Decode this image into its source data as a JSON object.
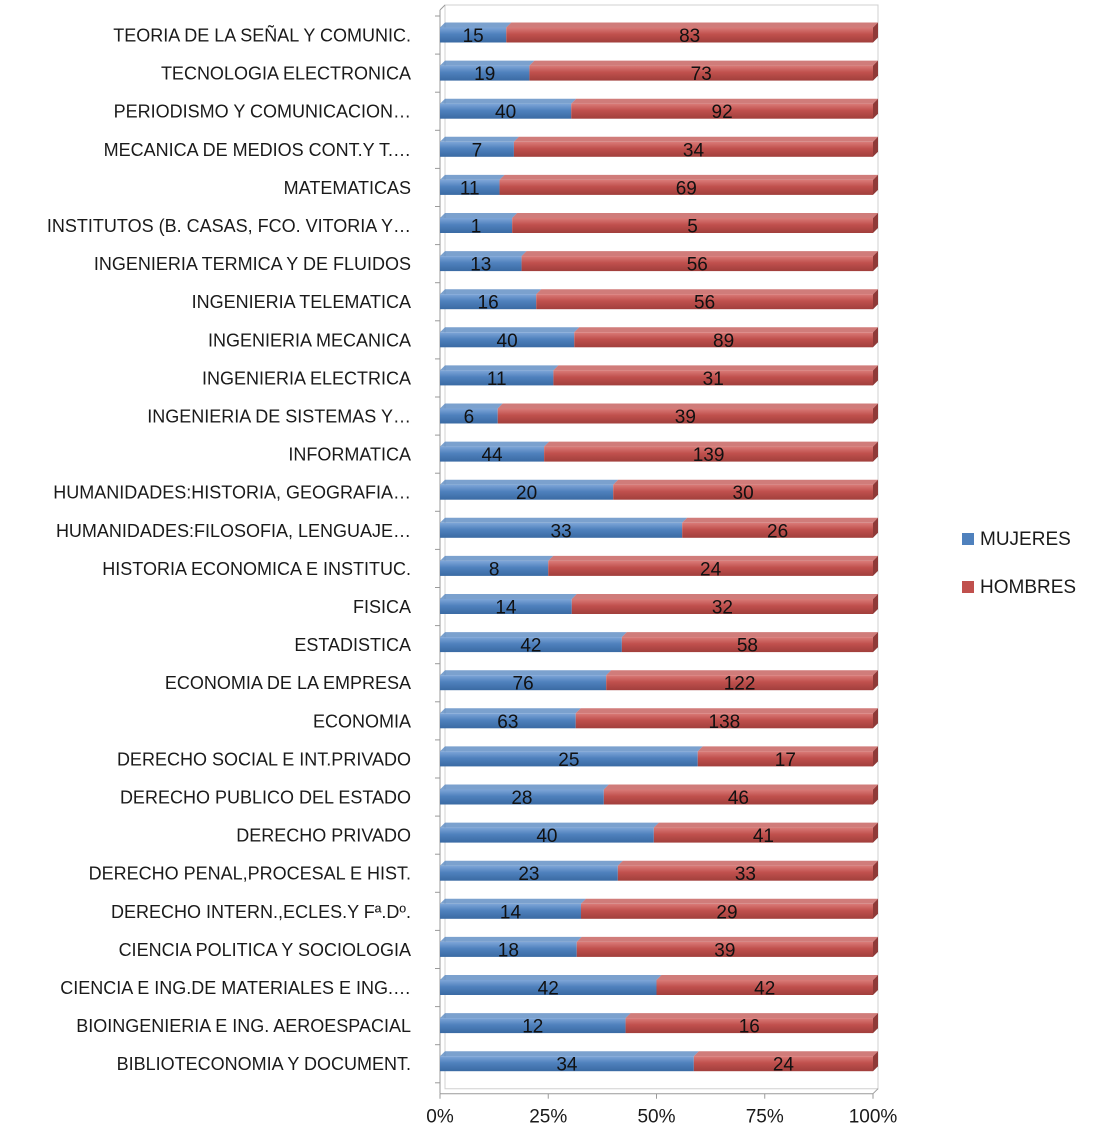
{
  "chart_data": {
    "type": "bar",
    "orientation": "horizontal",
    "stacked": "percent",
    "categories": [
      "TEORIA DE LA SEÑAL Y COMUNIC.",
      "TECNOLOGIA ELECTRONICA",
      "PERIODISMO Y COMUNICACION…",
      "MECANICA DE MEDIOS CONT.Y T.…",
      "MATEMATICAS",
      "INSTITUTOS (B.  CASAS, FCO. VITORIA Y…",
      "INGENIERIA TERMICA Y DE FLUIDOS",
      "INGENIERIA TELEMATICA",
      "INGENIERIA MECANICA",
      "INGENIERIA ELECTRICA",
      "INGENIERIA DE SISTEMAS Y…",
      "INFORMATICA",
      "HUMANIDADES:HISTORIA, GEOGRAFIA…",
      "HUMANIDADES:FILOSOFIA, LENGUAJE…",
      "HISTORIA ECONOMICA E INSTITUC.",
      "FISICA",
      "ESTADISTICA",
      "ECONOMIA DE LA EMPRESA",
      "ECONOMIA",
      "DERECHO SOCIAL E INT.PRIVADO",
      "DERECHO PUBLICO DEL ESTADO",
      "DERECHO PRIVADO",
      "DERECHO PENAL,PROCESAL E HIST.",
      "DERECHO INTERN.,ECLES.Y Fª.Dº.",
      "CIENCIA POLITICA Y SOCIOLOGIA",
      "CIENCIA E ING.DE MATERIALES E ING.…",
      "BIOINGENIERIA E ING. AEROESPACIAL",
      "BIBLIOTECONOMIA Y DOCUMENT."
    ],
    "series": [
      {
        "name": "MUJERES",
        "color": "#4f81bd",
        "values": [
          15,
          19,
          40,
          7,
          11,
          1,
          13,
          16,
          40,
          11,
          6,
          44,
          20,
          33,
          8,
          14,
          42,
          76,
          63,
          25,
          28,
          40,
          23,
          14,
          18,
          42,
          12,
          34
        ]
      },
      {
        "name": "HOMBRES",
        "color": "#c0504d",
        "values": [
          83,
          73,
          92,
          34,
          69,
          5,
          56,
          56,
          89,
          31,
          39,
          139,
          30,
          26,
          24,
          32,
          58,
          122,
          138,
          17,
          46,
          41,
          33,
          29,
          39,
          42,
          16,
          24
        ]
      }
    ],
    "x_ticks": [
      "0%",
      "25%",
      "50%",
      "75%",
      "100%"
    ],
    "xlim": [
      0,
      100
    ],
    "grid": false,
    "legend_position": "right",
    "title": "",
    "xlabel": "",
    "ylabel": ""
  }
}
